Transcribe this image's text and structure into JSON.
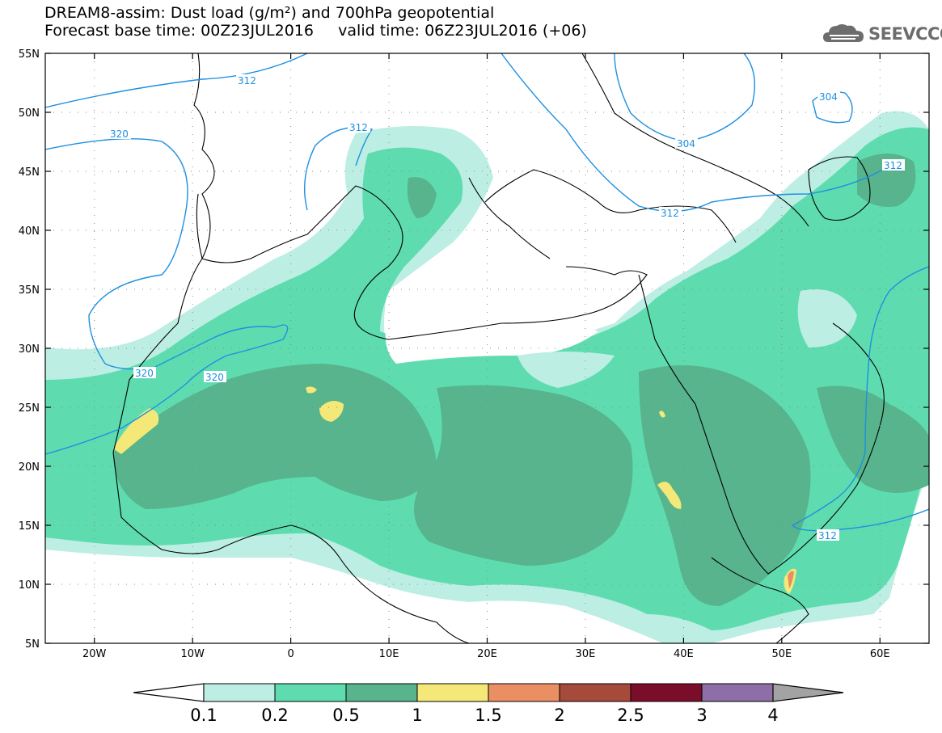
{
  "header": {
    "line1": "DREAM8-assim: Dust load (g/m²) and 700hPa geopotential",
    "line2": "Forecast base time: 00Z23JUL2016     valid time: 06Z23JUL2016 (+06)"
  },
  "logo": {
    "text": "SEEVCCC",
    "icon": "cloud-icon"
  },
  "axes": {
    "lon_labels": [
      "20W",
      "10W",
      "0",
      "10E",
      "20E",
      "30E",
      "40E",
      "50E",
      "60E"
    ],
    "lon_values": [
      -20,
      -10,
      0,
      10,
      20,
      30,
      40,
      50,
      60
    ],
    "lat_labels": [
      "55N",
      "50N",
      "45N",
      "40N",
      "35N",
      "30N",
      "25N",
      "20N",
      "15N",
      "10N",
      "5N"
    ],
    "lat_values": [
      55,
      50,
      45,
      40,
      35,
      30,
      25,
      20,
      15,
      10,
      5
    ],
    "lon_range": [
      -25,
      65
    ],
    "lat_range": [
      5,
      55
    ]
  },
  "contours": {
    "labels": [
      "312",
      "320",
      "312",
      "304",
      "304",
      "312",
      "312",
      "320",
      "320",
      "312"
    ],
    "color": "#1e90e0"
  },
  "colorbar": {
    "labels": [
      "0.1",
      "0.2",
      "0.5",
      "1",
      "1.5",
      "2",
      "2.5",
      "3",
      "4"
    ],
    "colors": [
      "#bdeee3",
      "#5edcb0",
      "#57b48c",
      "#f3e878",
      "#ea8e64",
      "#a64a3c",
      "#7a0e2a",
      "#8e6ea6"
    ],
    "under_color": "#ffffff",
    "over_color": "#a3a3a3"
  },
  "map_colors": {
    "light": "#bdeee3",
    "mid": "#5edcb0",
    "dark": "#57b48c",
    "yellow": "#f3e878",
    "orange": "#ea8e64"
  }
}
